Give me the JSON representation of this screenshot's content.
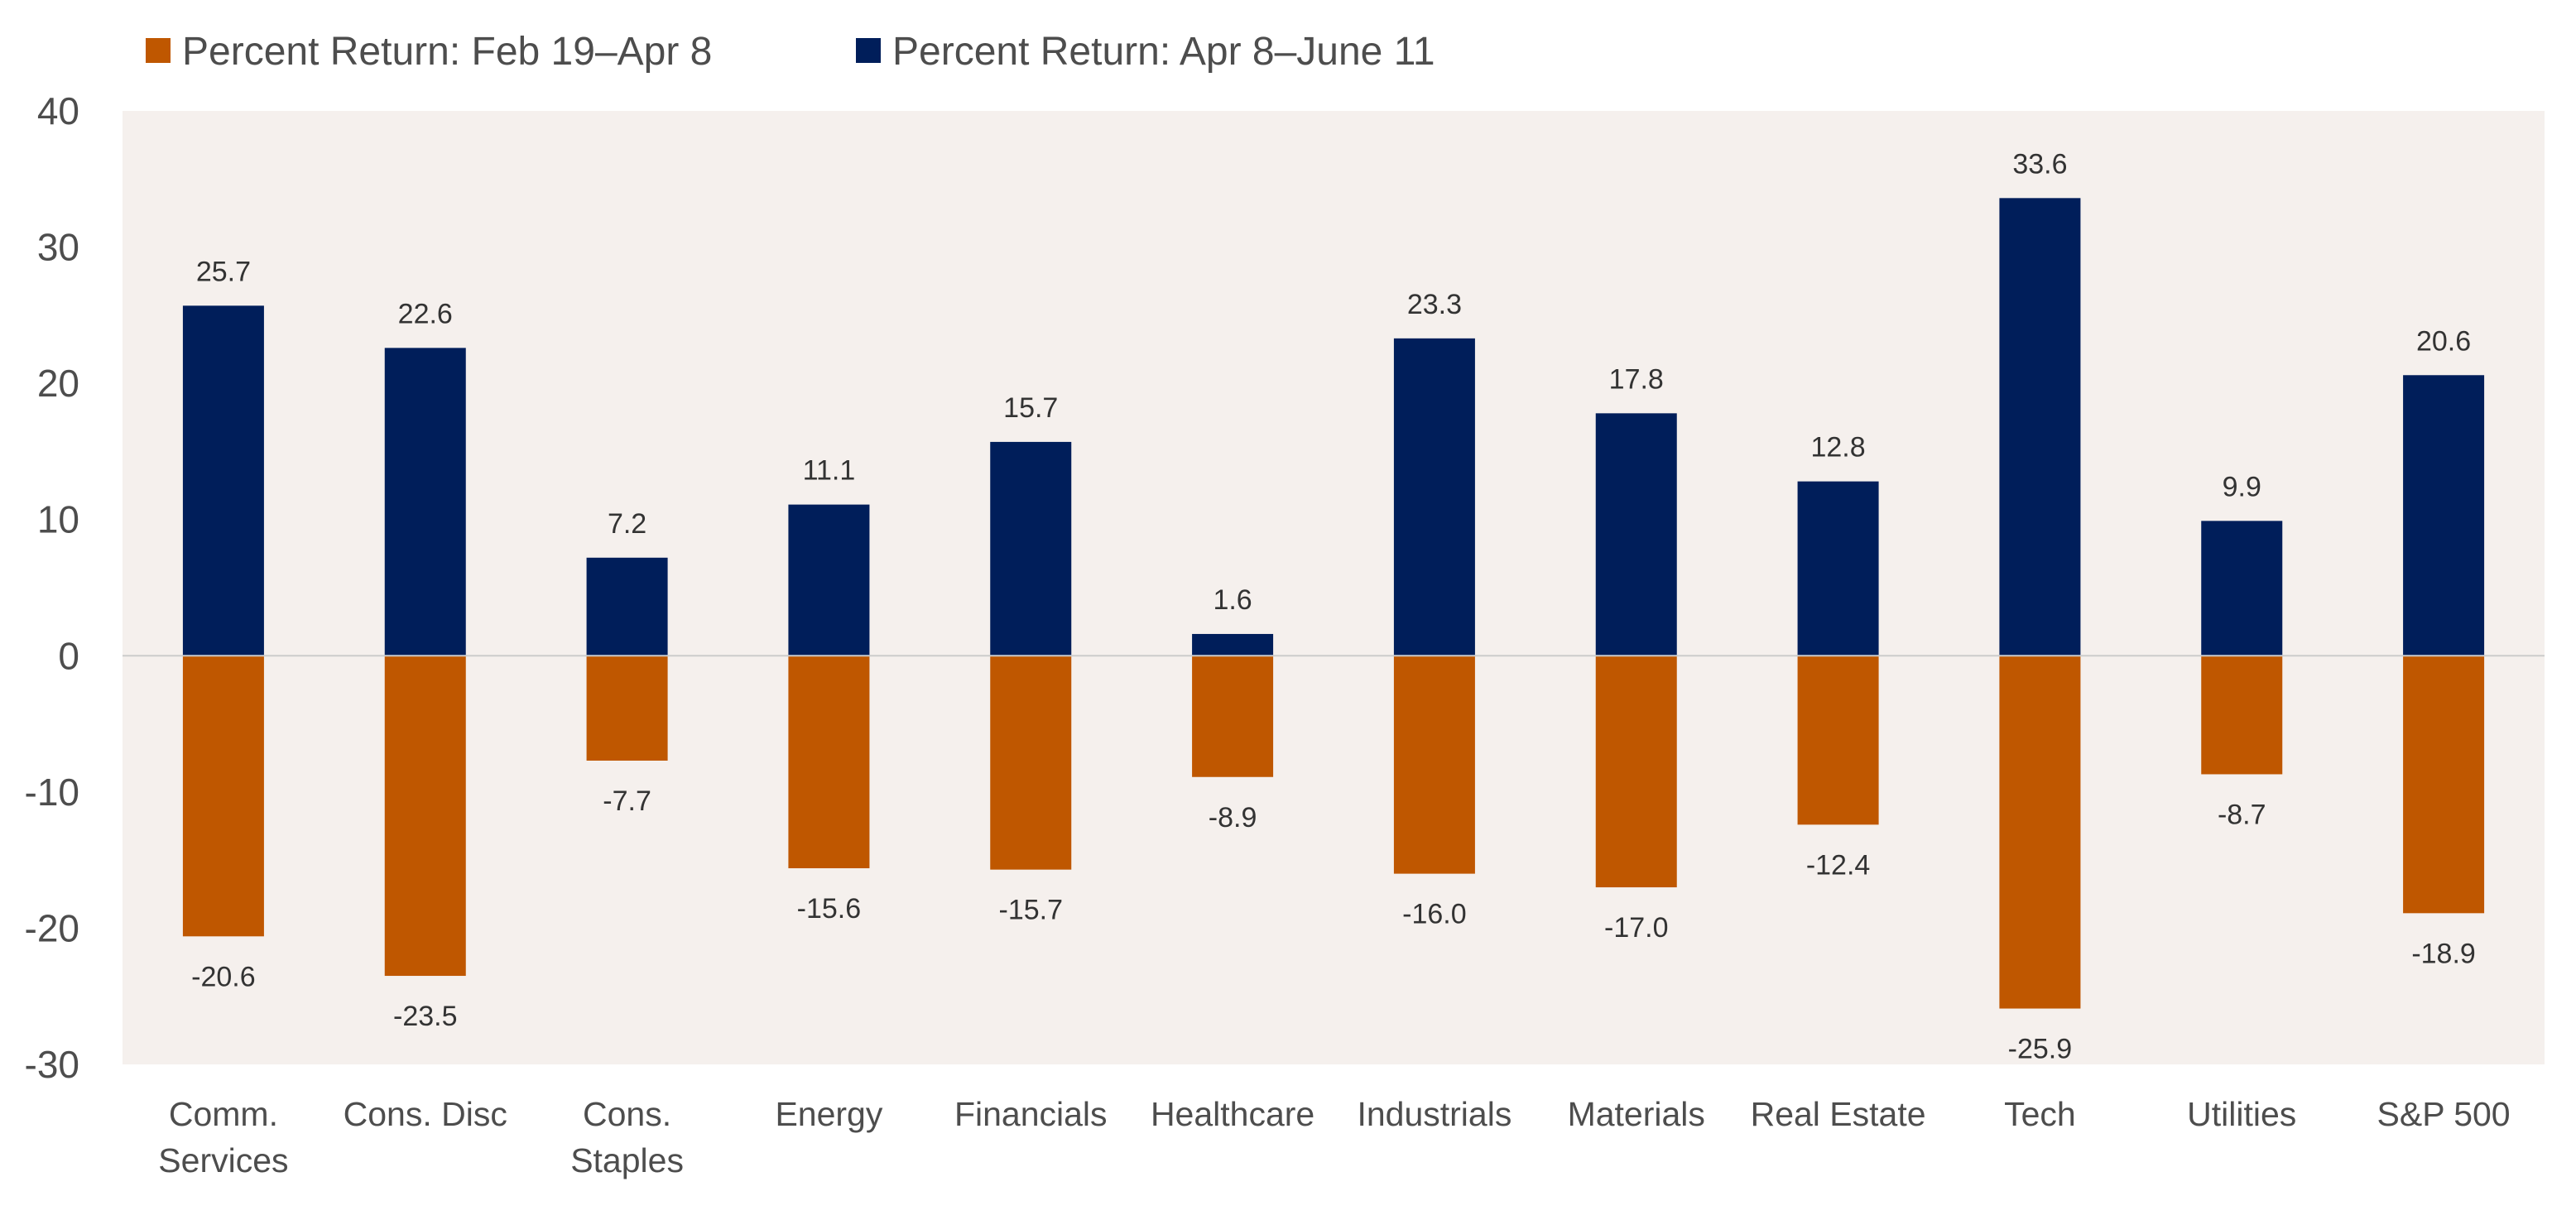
{
  "chart_data": {
    "type": "bar",
    "title": "",
    "xlabel": "",
    "ylabel": "",
    "ylim": [
      -30,
      40
    ],
    "yticks": [
      "40",
      "30",
      "20",
      "10",
      "0",
      "-10",
      "-20",
      "-30"
    ],
    "ytick_values": [
      40,
      30,
      20,
      10,
      0,
      -10,
      -20,
      -30
    ],
    "grid": false,
    "legend_position": "top-left",
    "categories": [
      [
        "Comm.",
        "Services"
      ],
      [
        "Cons. Disc"
      ],
      [
        "Cons.",
        "Staples"
      ],
      [
        "Energy"
      ],
      [
        "Financials"
      ],
      [
        "Healthcare"
      ],
      [
        "Industrials"
      ],
      [
        "Materials"
      ],
      [
        "Real Estate"
      ],
      [
        "Tech"
      ],
      [
        "Utilities"
      ],
      [
        "S&P 500"
      ]
    ],
    "series": [
      {
        "name": "Percent Return: Feb 19–Apr 8",
        "color": "#bf5700",
        "values": [
          -20.6,
          -23.5,
          -7.7,
          -15.6,
          -15.7,
          -8.9,
          -16.0,
          -17.0,
          -12.4,
          -25.9,
          -8.7,
          -18.9
        ],
        "labels": [
          "-20.6",
          "-23.5",
          "-7.7",
          "-15.6",
          "-15.7",
          "-8.9",
          "-16.0",
          "-17.0",
          "-12.4",
          "-25.9",
          "-8.7",
          "-18.9"
        ]
      },
      {
        "name": "Percent Return: Apr 8–June 11",
        "color": "#001e5a",
        "values": [
          25.7,
          22.6,
          7.2,
          11.1,
          15.7,
          1.6,
          23.3,
          17.8,
          12.8,
          33.6,
          9.9,
          20.6
        ],
        "labels": [
          "25.7",
          "22.6",
          "7.2",
          "11.1",
          "15.7",
          "1.6",
          "23.3",
          "17.8",
          "12.8",
          "33.6",
          "9.9",
          "20.6"
        ]
      }
    ],
    "plot_background": "#f5f0ed",
    "zero_line_color": "#cccccc"
  }
}
